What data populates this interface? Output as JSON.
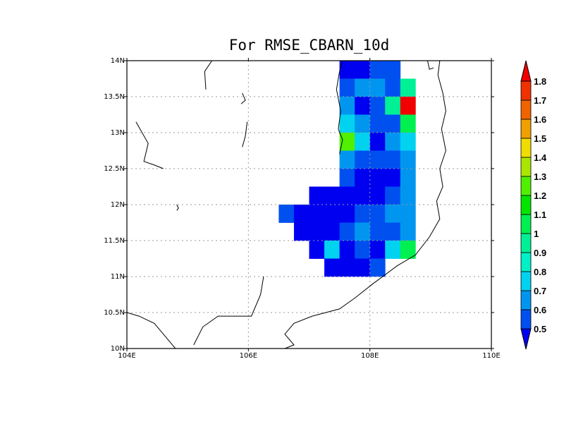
{
  "chart_data": {
    "type": "heatmap",
    "title": "For RMSE_CBARN_10d",
    "x_range": [
      104,
      110
    ],
    "y_range": [
      10,
      14
    ],
    "x_ticks": [
      {
        "value": 104,
        "label": "104E"
      },
      {
        "value": 106,
        "label": "106E"
      },
      {
        "value": 108,
        "label": "108E"
      },
      {
        "value": 110,
        "label": "110E"
      }
    ],
    "y_ticks": [
      {
        "value": 10,
        "label": "10N"
      },
      {
        "value": 10.5,
        "label": "10.5N"
      },
      {
        "value": 11,
        "label": "11N"
      },
      {
        "value": 11.5,
        "label": "11.5N"
      },
      {
        "value": 12,
        "label": "12N"
      },
      {
        "value": 12.5,
        "label": "12.5N"
      },
      {
        "value": 13,
        "label": "13N"
      },
      {
        "value": 13.5,
        "label": "13.5N"
      },
      {
        "value": 14,
        "label": "14N"
      }
    ],
    "grid": true,
    "cell_size_deg": 0.25,
    "cells": [
      {
        "lon": 107.625,
        "lat": 13.875,
        "value": 0.45
      },
      {
        "lon": 107.875,
        "lat": 13.875,
        "value": 0.45
      },
      {
        "lon": 108.125,
        "lat": 13.875,
        "value": 0.55
      },
      {
        "lon": 108.375,
        "lat": 13.875,
        "value": 0.55
      },
      {
        "lon": 107.625,
        "lat": 13.625,
        "value": 0.55
      },
      {
        "lon": 107.875,
        "lat": 13.625,
        "value": 0.65
      },
      {
        "lon": 108.125,
        "lat": 13.625,
        "value": 0.65
      },
      {
        "lon": 108.375,
        "lat": 13.625,
        "value": 0.55
      },
      {
        "lon": 108.625,
        "lat": 13.625,
        "value": 0.95
      },
      {
        "lon": 107.625,
        "lat": 13.375,
        "value": 0.65
      },
      {
        "lon": 107.875,
        "lat": 13.375,
        "value": 0.45
      },
      {
        "lon": 108.125,
        "lat": 13.375,
        "value": 0.55
      },
      {
        "lon": 108.375,
        "lat": 13.375,
        "value": 0.95
      },
      {
        "lon": 108.625,
        "lat": 13.375,
        "value": 1.85
      },
      {
        "lon": 107.625,
        "lat": 13.125,
        "value": 0.75
      },
      {
        "lon": 107.875,
        "lat": 13.125,
        "value": 0.65
      },
      {
        "lon": 108.125,
        "lat": 13.125,
        "value": 0.55
      },
      {
        "lon": 108.375,
        "lat": 13.125,
        "value": 0.55
      },
      {
        "lon": 108.625,
        "lat": 13.125,
        "value": 1.05
      },
      {
        "lon": 107.625,
        "lat": 12.875,
        "value": 1.25
      },
      {
        "lon": 107.875,
        "lat": 12.875,
        "value": 0.75
      },
      {
        "lon": 108.125,
        "lat": 12.875,
        "value": 0.45
      },
      {
        "lon": 108.375,
        "lat": 12.875,
        "value": 0.65
      },
      {
        "lon": 108.625,
        "lat": 12.875,
        "value": 0.75
      },
      {
        "lon": 107.625,
        "lat": 12.625,
        "value": 0.65
      },
      {
        "lon": 107.875,
        "lat": 12.625,
        "value": 0.55
      },
      {
        "lon": 108.125,
        "lat": 12.625,
        "value": 0.55
      },
      {
        "lon": 108.375,
        "lat": 12.625,
        "value": 0.55
      },
      {
        "lon": 108.625,
        "lat": 12.625,
        "value": 0.65
      },
      {
        "lon": 107.625,
        "lat": 12.375,
        "value": 0.55
      },
      {
        "lon": 107.875,
        "lat": 12.375,
        "value": 0.45
      },
      {
        "lon": 108.125,
        "lat": 12.375,
        "value": 0.45
      },
      {
        "lon": 108.375,
        "lat": 12.375,
        "value": 0.45
      },
      {
        "lon": 108.625,
        "lat": 12.375,
        "value": 0.65
      },
      {
        "lon": 107.125,
        "lat": 12.125,
        "value": 0.45
      },
      {
        "lon": 107.375,
        "lat": 12.125,
        "value": 0.45
      },
      {
        "lon": 107.625,
        "lat": 12.125,
        "value": 0.45
      },
      {
        "lon": 107.875,
        "lat": 12.125,
        "value": 0.45
      },
      {
        "lon": 108.125,
        "lat": 12.125,
        "value": 0.45
      },
      {
        "lon": 108.375,
        "lat": 12.125,
        "value": 0.55
      },
      {
        "lon": 108.625,
        "lat": 12.125,
        "value": 0.65
      },
      {
        "lon": 106.625,
        "lat": 11.875,
        "value": 0.55
      },
      {
        "lon": 106.875,
        "lat": 11.875,
        "value": 0.45
      },
      {
        "lon": 107.125,
        "lat": 11.875,
        "value": 0.45
      },
      {
        "lon": 107.375,
        "lat": 11.875,
        "value": 0.45
      },
      {
        "lon": 107.625,
        "lat": 11.875,
        "value": 0.45
      },
      {
        "lon": 107.875,
        "lat": 11.875,
        "value": 0.55
      },
      {
        "lon": 108.125,
        "lat": 11.875,
        "value": 0.55
      },
      {
        "lon": 108.375,
        "lat": 11.875,
        "value": 0.65
      },
      {
        "lon": 108.625,
        "lat": 11.875,
        "value": 0.65
      },
      {
        "lon": 106.875,
        "lat": 11.625,
        "value": 0.45
      },
      {
        "lon": 107.125,
        "lat": 11.625,
        "value": 0.45
      },
      {
        "lon": 107.375,
        "lat": 11.625,
        "value": 0.45
      },
      {
        "lon": 107.625,
        "lat": 11.625,
        "value": 0.55
      },
      {
        "lon": 107.875,
        "lat": 11.625,
        "value": 0.65
      },
      {
        "lon": 108.125,
        "lat": 11.625,
        "value": 0.55
      },
      {
        "lon": 108.375,
        "lat": 11.625,
        "value": 0.55
      },
      {
        "lon": 108.625,
        "lat": 11.625,
        "value": 0.65
      },
      {
        "lon": 107.125,
        "lat": 11.375,
        "value": 0.45
      },
      {
        "lon": 107.375,
        "lat": 11.375,
        "value": 0.75
      },
      {
        "lon": 107.625,
        "lat": 11.375,
        "value": 0.45
      },
      {
        "lon": 107.875,
        "lat": 11.375,
        "value": 0.55
      },
      {
        "lon": 108.125,
        "lat": 11.375,
        "value": 0.45
      },
      {
        "lon": 108.375,
        "lat": 11.375,
        "value": 0.75
      },
      {
        "lon": 108.625,
        "lat": 11.375,
        "value": 1.05
      },
      {
        "lon": 107.375,
        "lat": 11.125,
        "value": 0.45
      },
      {
        "lon": 107.625,
        "lat": 11.125,
        "value": 0.45
      },
      {
        "lon": 107.875,
        "lat": 11.125,
        "value": 0.45
      },
      {
        "lon": 108.125,
        "lat": 11.125,
        "value": 0.55
      }
    ],
    "colorbar": {
      "labels": [
        "0.5",
        "0.6",
        "0.7",
        "0.8",
        "0.9",
        "1",
        "1.1",
        "1.2",
        "1.3",
        "1.4",
        "1.5",
        "1.6",
        "1.7",
        "1.8"
      ],
      "levels": [
        0.5,
        0.6,
        0.7,
        0.8,
        0.9,
        1.0,
        1.1,
        1.2,
        1.3,
        1.4,
        1.5,
        1.6,
        1.7,
        1.8
      ],
      "colors": [
        "#0000f0",
        "#0050f0",
        "#0096f0",
        "#00d2f0",
        "#00f0c8",
        "#00f096",
        "#00f050",
        "#00e600",
        "#50f000",
        "#aae600",
        "#f0dc00",
        "#f0a000",
        "#f06400",
        "#f03200",
        "#f00000"
      ]
    }
  }
}
